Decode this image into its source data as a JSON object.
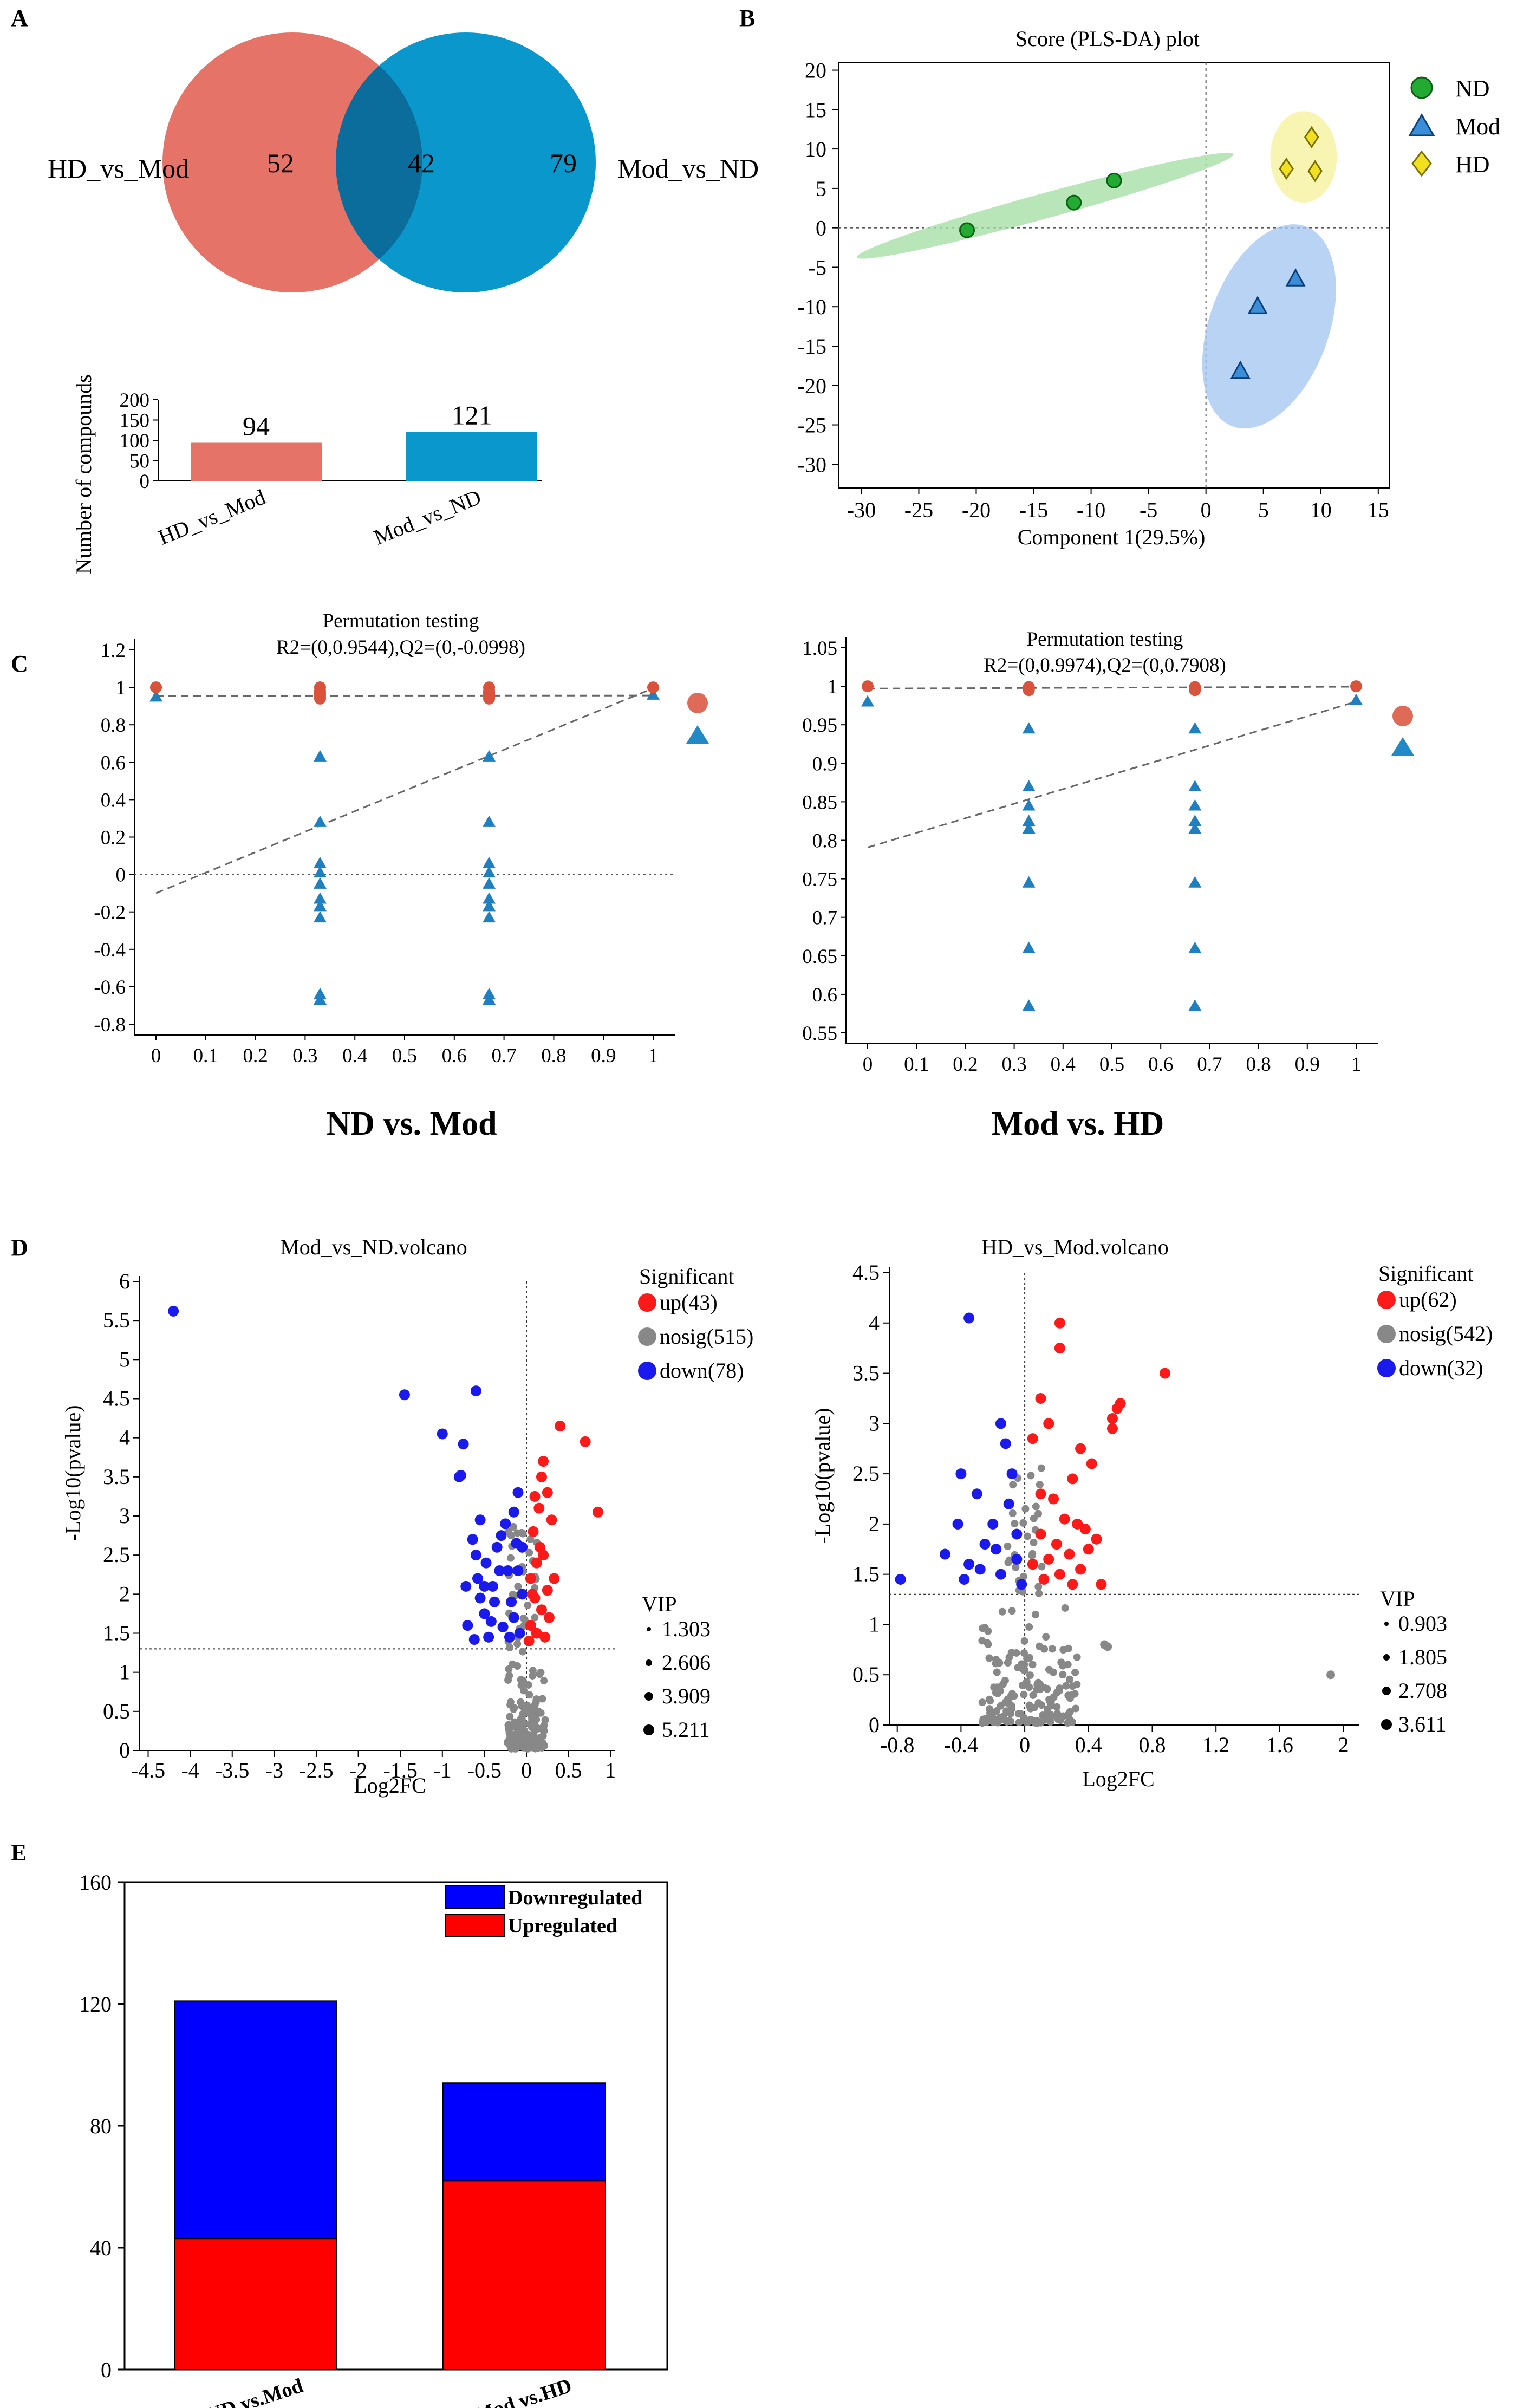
{
  "panels": {
    "A": "A",
    "B": "B",
    "C": "C",
    "D": "D",
    "E": "E"
  },
  "venn": {
    "left_label": "HD_vs_Mod",
    "right_label": "Mod_vs_ND",
    "left_only": "52",
    "overlap": "42",
    "right_only": "79",
    "left_color": "#e57368",
    "right_color": "#0a97cc",
    "overlap_color": "#0a6d9c"
  },
  "compound_bars": {
    "ylabel": "Number of compounds",
    "yticks": [
      "0",
      "50",
      "100",
      "150",
      "200"
    ],
    "categories": [
      "HD_vs_Mod",
      "Mod_vs_ND"
    ],
    "values": [
      94,
      121
    ],
    "value_labels": [
      "94",
      "121"
    ],
    "colors": [
      "#e57368",
      "#0a97cc"
    ]
  },
  "chart_data": [
    {
      "id": "A-bar",
      "type": "bar",
      "title": "",
      "xlabel": "",
      "ylabel": "Number of compounds",
      "categories": [
        "HD_vs_Mod",
        "Mod_vs_ND"
      ],
      "values": [
        94,
        121
      ],
      "ylim": [
        0,
        200
      ]
    },
    {
      "id": "B",
      "type": "scatter",
      "title": "Score (PLS-DA) plot",
      "xlabel": "Component 1(29.5%)",
      "ylabel": "",
      "xlim": [
        -32,
        16
      ],
      "ylim": [
        -33,
        21
      ],
      "series": [
        {
          "name": "ND",
          "color": "#22aa33",
          "points": [
            [
              -20.8,
              -0.3
            ],
            [
              -11.5,
              3.2
            ],
            [
              -8,
              6
            ]
          ]
        },
        {
          "name": "Mod",
          "color": "#3a8fd8",
          "points": [
            [
              3,
              -18.2
            ],
            [
              4.5,
              -10
            ],
            [
              7.8,
              -6.5
            ]
          ]
        },
        {
          "name": "HD",
          "color": "#f0e020",
          "points": [
            [
              7,
              7.5
            ],
            [
              9.2,
              11.5
            ],
            [
              9.5,
              7.2
            ]
          ]
        }
      ]
    },
    {
      "id": "C1",
      "type": "scatter",
      "title": "Permutation testing",
      "subtitle": "R2=(0,0.9544),Q2=(0,-0.0998)",
      "xlabel": "",
      "ylabel": "",
      "xlim": [
        0,
        1
      ],
      "ylim": [
        -0.8,
        1.2
      ],
      "series": [
        {
          "name": "R2",
          "values_x": [
            0,
            0.33,
            0.33,
            0.33,
            0.33,
            0.33,
            0.33,
            0.67,
            0.67,
            0.67,
            0.67,
            0.67,
            0.67,
            1
          ],
          "values_y": [
            1,
            1,
            0.98,
            0.97,
            0.96,
            0.95,
            0.94,
            1,
            0.98,
            0.97,
            0.96,
            0.95,
            0.94,
            1
          ]
        },
        {
          "name": "Q2",
          "values_x": [
            0,
            0.33,
            0.33,
            0.33,
            0.33,
            0.33,
            0.33,
            0.33,
            0.33,
            0.33,
            0.33,
            0.33,
            0.33,
            0.67,
            0.67,
            0.67,
            0.67,
            0.67,
            0.67,
            0.67,
            0.67,
            0.67,
            0.67,
            0.67,
            0.67,
            1
          ],
          "values_y": [
            0.95,
            0.63,
            0.28,
            0.06,
            0.01,
            -0.05,
            -0.13,
            -0.17,
            -0.23,
            -0.64,
            -0.67,
            -0.67,
            -0.67,
            0.63,
            0.28,
            0.06,
            0.01,
            -0.05,
            -0.13,
            -0.17,
            -0.23,
            -0.64,
            -0.67,
            -0.67,
            -0.67,
            0.96
          ]
        }
      ],
      "lines": {
        "R2": [
          0.9544
        ],
        "Q2": [
          -0.0998
        ]
      }
    },
    {
      "id": "C2",
      "type": "scatter",
      "title": "Permutation testing",
      "subtitle": "R2=(0,0.9974),Q2=(0,0.7908)",
      "xlabel": "",
      "ylabel": "",
      "xlim": [
        0,
        1
      ],
      "ylim": [
        0.55,
        1.05
      ],
      "series": [
        {
          "name": "R2",
          "values_x": [
            0,
            0.33,
            0.33,
            0.33,
            0.67,
            0.67,
            0.67,
            1
          ],
          "values_y": [
            1,
            0.999,
            0.997,
            0.995,
            0.999,
            0.997,
            0.995,
            1
          ]
        },
        {
          "name": "Q2",
          "values_x": [
            0,
            0.33,
            0.33,
            0.33,
            0.33,
            0.33,
            0.33,
            0.33,
            0.33,
            0.67,
            0.67,
            0.67,
            0.67,
            0.67,
            0.67,
            0.67,
            0.67,
            1
          ],
          "values_y": [
            0.98,
            0.945,
            0.87,
            0.845,
            0.825,
            0.815,
            0.745,
            0.66,
            0.585,
            0.945,
            0.87,
            0.845,
            0.825,
            0.815,
            0.745,
            0.66,
            0.585,
            0.982
          ]
        }
      ],
      "lines": {
        "R2": [
          0.9974
        ],
        "Q2": [
          0.7908
        ]
      }
    },
    {
      "id": "D1",
      "type": "scatter",
      "title": "Mod_vs_ND.volcano",
      "xlabel": "Log2FC",
      "ylabel": "-Log10(pvalue)",
      "xlim": [
        -4.6,
        1.05
      ],
      "ylim": [
        0,
        6
      ],
      "series": [
        {
          "name": "up",
          "count": 43
        },
        {
          "name": "nosig",
          "count": 515
        },
        {
          "name": "down",
          "count": 78
        }
      ],
      "threshold": 1.3
    },
    {
      "id": "D2",
      "type": "scatter",
      "title": "HD_vs_Mod.volcano",
      "xlabel": "Log2FC",
      "ylabel": "-Log10(pvalue)",
      "xlim": [
        -0.85,
        2.1
      ],
      "ylim": [
        0,
        4.5
      ],
      "series": [
        {
          "name": "up",
          "count": 62
        },
        {
          "name": "nosig",
          "count": 542
        },
        {
          "name": "down",
          "count": 32
        }
      ],
      "threshold": 1.3
    },
    {
      "id": "E",
      "type": "bar",
      "title": "",
      "xlabel": "",
      "ylabel": "",
      "categories": [
        "ND vs.Mod",
        "Mod vs.HD"
      ],
      "ylim": [
        0,
        160
      ],
      "series": [
        {
          "name": "Upregulated",
          "values": [
            43,
            62
          ],
          "color": "#ff0000"
        },
        {
          "name": "Downregulated",
          "values": [
            78,
            32
          ],
          "color": "#0000ff"
        }
      ]
    }
  ],
  "pls": {
    "title": "Score (PLS-DA) plot",
    "xlabel": "Component 1(29.5%)",
    "xticks": [
      "-30",
      "-25",
      "-20",
      "-15",
      "-10",
      "-5",
      "0",
      "5",
      "10",
      "15"
    ],
    "yticks": [
      "20",
      "15",
      "10",
      "5",
      "0",
      "-5",
      "-10",
      "-15",
      "-20",
      "-25",
      "-30"
    ],
    "legend": [
      {
        "name": "ND",
        "color": "#22aa33",
        "shape": "circle"
      },
      {
        "name": "Mod",
        "color": "#3a8fd8",
        "shape": "triangle"
      },
      {
        "name": "HD",
        "color": "#f0e020",
        "shape": "diamond"
      }
    ]
  },
  "perm1": {
    "title": "Permutation testing",
    "subtitle": "R2=(0,0.9544),Q2=(0,-0.0998)",
    "caption": "ND vs. Mod",
    "yticks": [
      "1.2",
      "1",
      "0.8",
      "0.6",
      "0.4",
      "0.2",
      "0",
      "-0.2",
      "-0.4",
      "-0.6",
      "-0.8"
    ],
    "xticks": [
      "0",
      "0.1",
      "0.2",
      "0.3",
      "0.4",
      "0.5",
      "0.6",
      "0.7",
      "0.8",
      "0.9",
      "1"
    ]
  },
  "perm2": {
    "title": "Permutation testing",
    "subtitle": "R2=(0,0.9974),Q2=(0,0.7908)",
    "caption": "Mod vs. HD",
    "yticks": [
      "1.05",
      "1",
      "0.95",
      "0.9",
      "0.85",
      "0.8",
      "0.75",
      "0.7",
      "0.65",
      "0.6",
      "0.55"
    ],
    "xticks": [
      "0",
      "0.1",
      "0.2",
      "0.3",
      "0.4",
      "0.5",
      "0.6",
      "0.7",
      "0.8",
      "0.9",
      "1"
    ]
  },
  "volc1": {
    "title": "Mod_vs_ND.volcano",
    "xlabel": "Log2FC",
    "ylabel": "-Log10(pvalue)",
    "yticks": [
      "6",
      "5.5",
      "5",
      "4.5",
      "4",
      "3.5",
      "3",
      "2.5",
      "2",
      "1.5",
      "1",
      "0.5",
      "0"
    ],
    "xticks": [
      "-4.5",
      "-4",
      "-3.5",
      "-3",
      "-2.5",
      "-2",
      "-1.5",
      "-1",
      "-0.5",
      "0",
      "0.5",
      "1"
    ],
    "legend_title": "Significant",
    "up": "up(43)",
    "nosig": "nosig(515)",
    "down": "down(78)",
    "vip_title": "VIP",
    "vip": [
      "1.303",
      "2.606",
      "3.909",
      "5.211"
    ]
  },
  "volc2": {
    "title": "HD_vs_Mod.volcano",
    "xlabel": "Log2FC",
    "ylabel": "-Log10(pvalue)",
    "yticks": [
      "4.5",
      "4",
      "3.5",
      "3",
      "2.5",
      "2",
      "1.5",
      "1",
      "0.5",
      "0"
    ],
    "xticks": [
      "-0.8",
      "-0.4",
      "0",
      "0.4",
      "0.8",
      "1.2",
      "1.6",
      "2"
    ],
    "legend_title": "Significant",
    "up": "up(62)",
    "nosig": "nosig(542)",
    "down": "down(32)",
    "vip_title": "VIP",
    "vip": [
      "0.903",
      "1.805",
      "2.708",
      "3.611"
    ]
  },
  "stack": {
    "yticks": [
      "160",
      "120",
      "80",
      "40",
      "0"
    ],
    "categories": [
      "ND vs.Mod",
      "Mod vs.HD"
    ],
    "legend_down": "Downregulated",
    "legend_up": "Upregulated",
    "up_color": "#ff0000",
    "down_color": "#0000ff"
  }
}
